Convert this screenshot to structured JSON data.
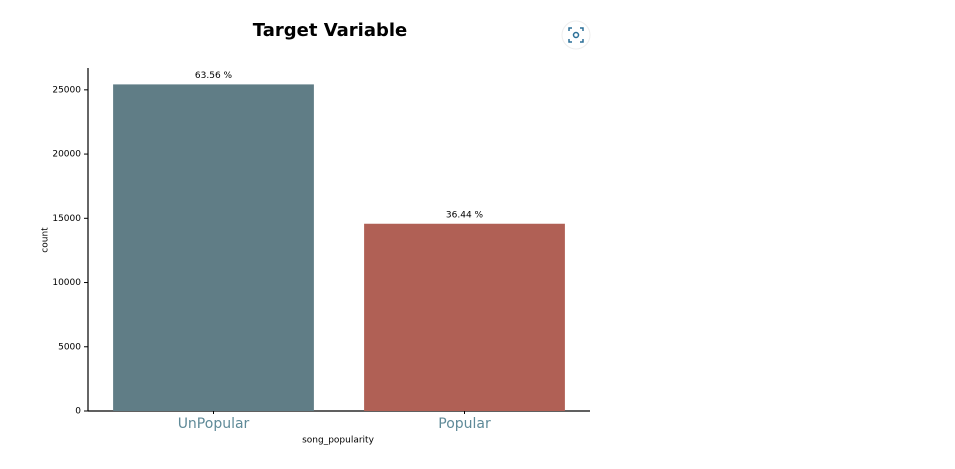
{
  "chart_data": {
    "type": "bar",
    "title": "Target Variable",
    "x_label": "song_popularity",
    "y_label": "count",
    "categories": [
      "UnPopular",
      "Popular"
    ],
    "values": [
      25424,
      14576
    ],
    "annotations": [
      "63.56 %",
      "36.44 %"
    ],
    "colors": [
      "#607d86",
      "#b06055"
    ],
    "ylim": [
      0,
      26700
    ],
    "yticks": [
      0,
      5000,
      10000,
      15000,
      20000,
      25000
    ],
    "grid": false
  }
}
